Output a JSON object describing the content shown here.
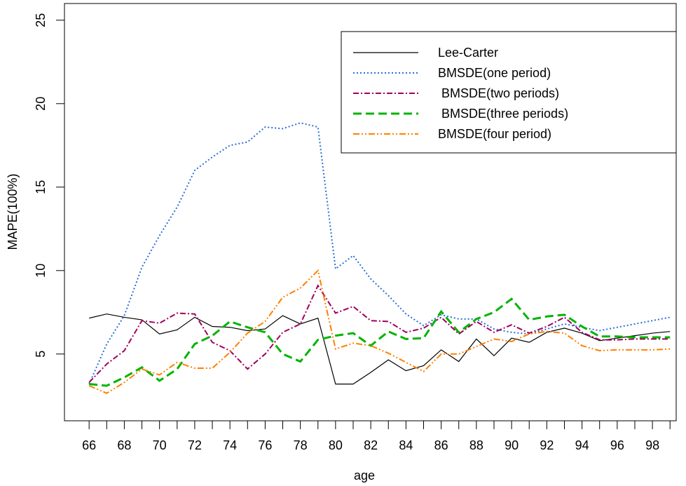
{
  "chart_data": {
    "type": "line",
    "xlabel": "age",
    "ylabel": "MAPE(100%)",
    "x": [
      66,
      67,
      68,
      69,
      70,
      71,
      72,
      73,
      74,
      75,
      76,
      77,
      78,
      79,
      80,
      81,
      82,
      83,
      84,
      85,
      86,
      87,
      88,
      89,
      90,
      91,
      92,
      93,
      94,
      95,
      96,
      97,
      98,
      99
    ],
    "xlim": [
      64.6,
      99.35
    ],
    "ylim": [
      1,
      26
    ],
    "xticks": [
      66,
      68,
      70,
      72,
      74,
      76,
      78,
      80,
      82,
      84,
      86,
      88,
      90,
      92,
      94,
      96,
      98
    ],
    "xminorticks": [
      67,
      69,
      71,
      73,
      75,
      77,
      79,
      81,
      83,
      85,
      87,
      89,
      91,
      93,
      95,
      97,
      99
    ],
    "yticks": [
      5,
      10,
      15,
      20,
      25
    ],
    "legend": "top-right",
    "series": [
      {
        "name": "Lee-Carter",
        "color": "#000000",
        "linestyle": "solid",
        "values": [
          7.15,
          7.4,
          7.2,
          7.05,
          6.2,
          6.45,
          7.2,
          6.65,
          6.6,
          6.4,
          6.5,
          7.3,
          6.8,
          7.15,
          3.2,
          3.2,
          3.9,
          4.65,
          4.0,
          4.3,
          5.25,
          4.55,
          5.9,
          4.9,
          5.95,
          5.7,
          6.3,
          6.55,
          6.25,
          5.8,
          5.95,
          6.1,
          6.25,
          6.35
        ]
      },
      {
        "name": "BMSDE(one period)",
        "color": "#2B6FD6",
        "linestyle": "dotted",
        "values": [
          3.2,
          5.6,
          7.3,
          10.2,
          12.1,
          13.8,
          16.0,
          16.8,
          17.5,
          17.7,
          18.6,
          18.5,
          18.85,
          18.6,
          10.1,
          10.9,
          9.5,
          8.5,
          7.4,
          6.7,
          7.35,
          7.1,
          7.1,
          6.5,
          6.3,
          6.2,
          6.5,
          6.8,
          6.6,
          6.4,
          6.6,
          6.8,
          7.0,
          7.2
        ]
      },
      {
        "name": " BMSDE(two periods)",
        "color": "#A0005F",
        "linestyle": "dashdot",
        "values": [
          3.3,
          4.4,
          5.2,
          7.0,
          6.85,
          7.45,
          7.4,
          5.7,
          5.2,
          4.1,
          5.0,
          6.3,
          6.8,
          9.1,
          7.45,
          7.85,
          7.0,
          6.95,
          6.3,
          6.55,
          7.2,
          6.2,
          6.95,
          6.3,
          6.75,
          6.25,
          6.65,
          7.2,
          6.3,
          5.85,
          5.85,
          5.9,
          5.9,
          5.9
        ]
      },
      {
        "name": " BMSDE(three periods)",
        "color": "#00B400",
        "linestyle": "dashed",
        "values": [
          3.2,
          3.1,
          3.6,
          4.2,
          3.4,
          4.1,
          5.6,
          6.1,
          6.95,
          6.6,
          6.3,
          5.0,
          4.55,
          5.85,
          6.1,
          6.25,
          5.5,
          6.35,
          5.9,
          5.95,
          7.55,
          6.3,
          7.1,
          7.5,
          8.3,
          7.05,
          7.25,
          7.35,
          6.65,
          6.05,
          6.05,
          6.0,
          6.0,
          6.0
        ]
      },
      {
        "name": "BMSDE(four period)",
        "color": "#FF8000",
        "linestyle": "dashdotdot",
        "values": [
          3.1,
          2.65,
          3.3,
          4.1,
          3.75,
          4.5,
          4.15,
          4.15,
          5.1,
          6.25,
          6.95,
          8.4,
          8.95,
          10.0,
          5.3,
          5.65,
          5.5,
          5.05,
          4.5,
          3.95,
          5.0,
          5.0,
          5.45,
          5.9,
          5.75,
          6.2,
          6.35,
          6.25,
          5.5,
          5.2,
          5.25,
          5.25,
          5.25,
          5.3
        ]
      }
    ]
  }
}
